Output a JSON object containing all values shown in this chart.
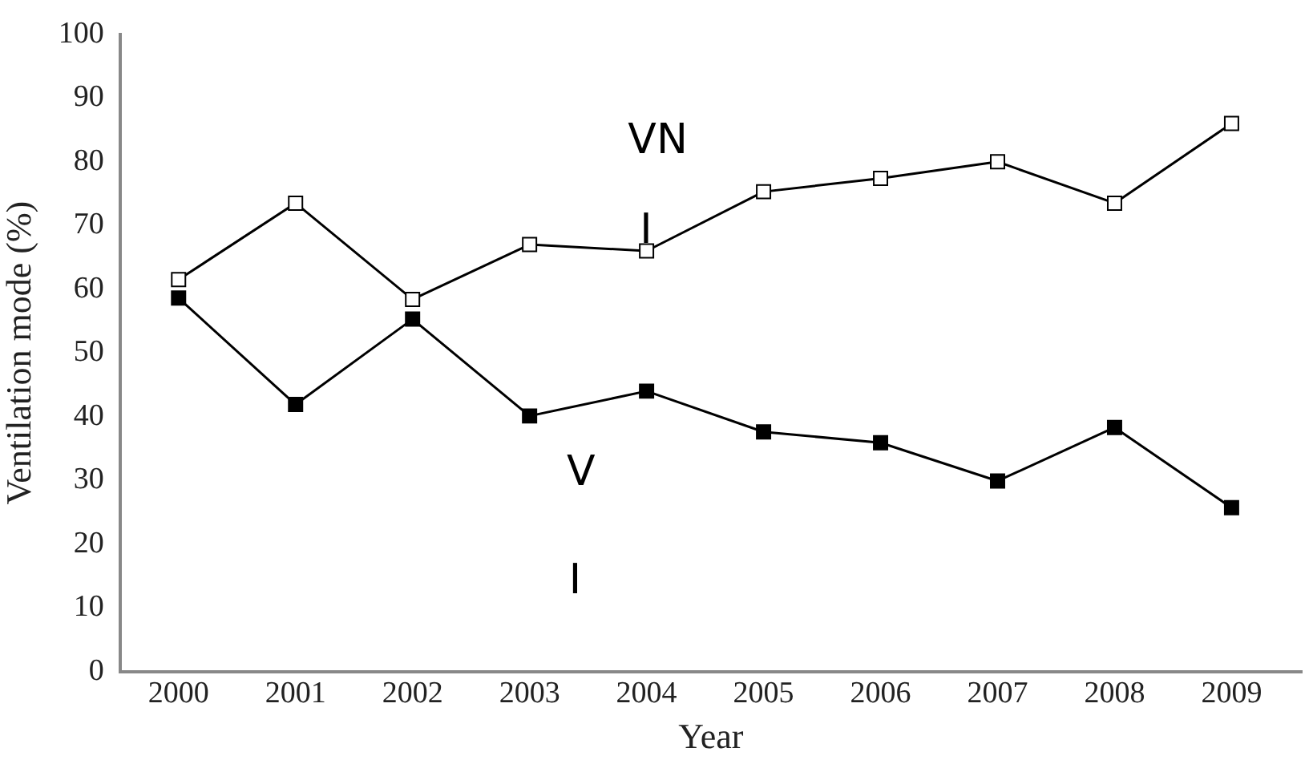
{
  "chart_data": {
    "type": "line",
    "xlabel": "Year",
    "ylabel": "Ventilation mode (%)",
    "x": [
      2000,
      2001,
      2002,
      2003,
      2004,
      2005,
      2006,
      2007,
      2008,
      2009
    ],
    "xlim": [
      1999.5,
      2009.6
    ],
    "xticks": [
      2000,
      2001,
      2002,
      2003,
      2004,
      2005,
      2006,
      2007,
      2008,
      2009
    ],
    "ylim": [
      0,
      100
    ],
    "yticks": [
      0,
      10,
      20,
      30,
      40,
      50,
      60,
      70,
      80,
      90,
      100
    ],
    "grid": false,
    "legend": false,
    "marker": "square",
    "line_style": "solid",
    "series": [
      {
        "color": "#ffffff",
        "values": [
          61.5,
          73.5,
          58.4,
          67,
          66,
          75.3,
          77.4,
          80,
          73.5,
          86
        ]
      },
      {
        "color": "#000000",
        "values": [
          58.6,
          41.9,
          55.3,
          40.1,
          44,
          37.6,
          35.9,
          29.9,
          38.3,
          25.7
        ]
      }
    ],
    "annotations": [
      "VN",
      "I",
      "V",
      "I"
    ]
  }
}
